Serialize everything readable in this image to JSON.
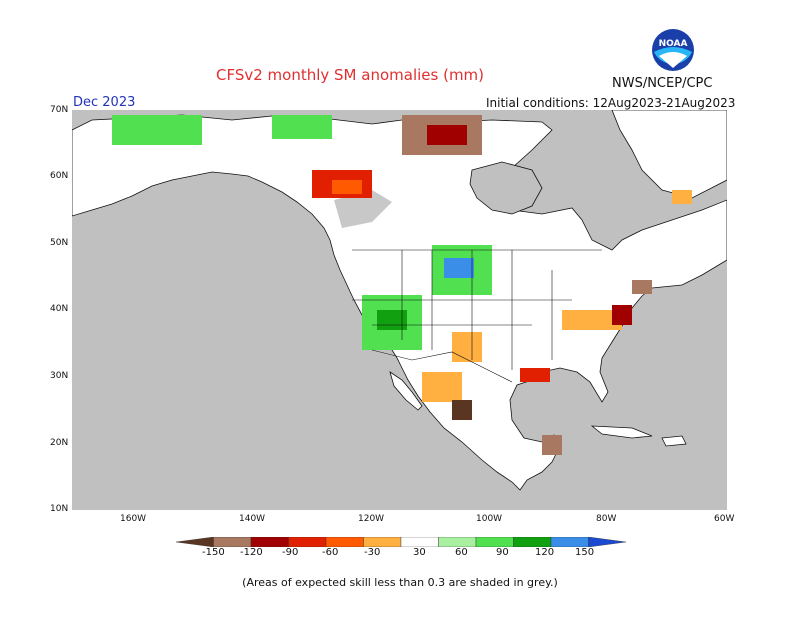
{
  "title": "CFSv2 monthly SM anomalies (mm)",
  "agency": "NWS/NCEP/CPC",
  "period": "Dec 2023",
  "initial_conditions": "Initial conditions: 12Aug2023-21Aug2023",
  "logo_text": "NOAA",
  "footnote": "(Areas of expected skill less than 0.3 are shaded in grey.)",
  "lat_labels": [
    "70N",
    "60N",
    "50N",
    "40N",
    "30N",
    "20N",
    "10N"
  ],
  "lon_labels": [
    "160W",
    "140W",
    "120W",
    "100W",
    "80W",
    "60W"
  ],
  "colorbar": {
    "ticks": [
      "-150",
      "-120",
      "-90",
      "-60",
      "-30",
      "30",
      "60",
      "90",
      "120",
      "150"
    ],
    "colors": [
      "#5a3522",
      "#a87860",
      "#a00000",
      "#e02000",
      "#ff5a00",
      "#ffb040",
      "#ffffff",
      "#a8f0a0",
      "#50e050",
      "#10a010",
      "#3a8ee8",
      "#1a4ad0"
    ]
  },
  "map_colors": {
    "skill_grey": "#c0c0c0",
    "land": "#ffffff"
  }
}
